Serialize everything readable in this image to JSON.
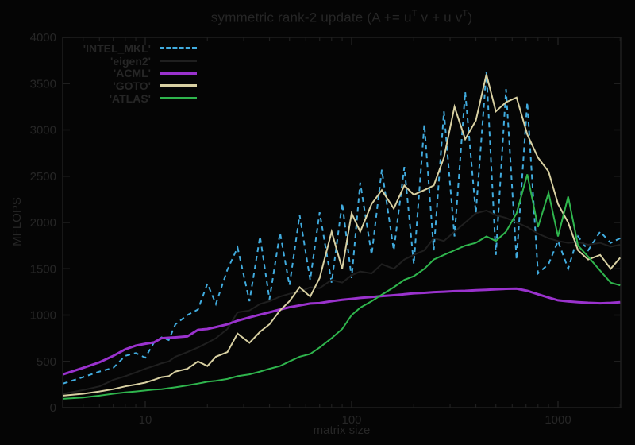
{
  "title": {
    "segments": [
      {
        "text": "symmetric rank-2 update (A += u",
        "sup": false
      },
      {
        "text": "T",
        "sup": true
      },
      {
        "text": " v + u v",
        "sup": false
      },
      {
        "text": "T",
        "sup": true
      },
      {
        "text": ")",
        "sup": false
      }
    ],
    "plain": "symmetric rank-2 update (A += uT v + u vT)"
  },
  "axes": {
    "x": {
      "label": "matrix size",
      "scale": "log",
      "min": 4,
      "max": 2000,
      "major_ticks": [
        10,
        100,
        1000
      ],
      "major_tick_labels": [
        "10",
        "100",
        "1000"
      ],
      "minor_ticks": [
        5,
        6,
        7,
        8,
        9,
        20,
        30,
        40,
        50,
        60,
        70,
        80,
        90,
        200,
        300,
        400,
        500,
        600,
        700,
        800,
        900,
        2000
      ]
    },
    "y": {
      "label": "MFLOPS",
      "min": 0,
      "max": 4000,
      "tick_values": [
        0,
        500,
        1000,
        1500,
        2000,
        2500,
        3000,
        3500,
        4000
      ],
      "tick_labels": [
        "0",
        "500",
        "1000",
        "1500",
        "2000",
        "2500",
        "3000",
        "3500",
        "4000"
      ]
    }
  },
  "legend": {
    "items": [
      {
        "label": "'INTEL_MKL'",
        "series": "INTEL_MKL"
      },
      {
        "label": "'eigen2'",
        "series": "eigen2"
      },
      {
        "label": "'ACML'",
        "series": "ACML"
      },
      {
        "label": "'GOTO'",
        "series": "GOTO"
      },
      {
        "label": "'ATLAS'",
        "series": "ATLAS"
      }
    ]
  },
  "colors": {
    "background": "#050505",
    "text": "#262626",
    "frame": "#1f1f1f",
    "intel_mkl": "#41acdf",
    "eigen2": "#1f1f1f",
    "acml": "#9a32cd",
    "goto": "#d8d0a2",
    "atlas": "#2fb54d"
  },
  "chart_data": {
    "type": "line",
    "title": "symmetric rank-2 update (A += uT v + u vT)",
    "xlabel": "matrix size",
    "ylabel": "MFLOPS",
    "x_scale": "log",
    "xlim": [
      4,
      2000
    ],
    "ylim": [
      0,
      4000
    ],
    "grid": false,
    "legend_position": "top-left",
    "sizes": [
      4,
      5,
      6,
      7,
      8,
      9,
      10,
      11,
      12,
      13,
      14,
      16,
      18,
      20,
      22,
      25,
      28,
      32,
      36,
      40,
      45,
      50,
      56,
      63,
      70,
      80,
      90,
      100,
      110,
      125,
      140,
      160,
      180,
      200,
      225,
      250,
      280,
      315,
      355,
      400,
      450,
      500,
      560,
      630,
      710,
      800,
      900,
      1000,
      1120,
      1250,
      1400,
      1600,
      1800,
      2000
    ],
    "series": [
      {
        "name": "INTEL_MKL",
        "style": "dashed",
        "color": "#41acdf",
        "values": [
          260,
          330,
          390,
          430,
          560,
          590,
          540,
          700,
          760,
          730,
          900,
          1000,
          1060,
          1340,
          1120,
          1490,
          1730,
          1150,
          1850,
          1170,
          1890,
          1320,
          2080,
          1380,
          2110,
          1350,
          2210,
          1400,
          2430,
          1650,
          2570,
          1700,
          2600,
          1550,
          3060,
          1700,
          3200,
          1850,
          3410,
          2100,
          3630,
          1650,
          3440,
          1600,
          3300,
          1450,
          1550,
          1800,
          1500,
          1850,
          1700,
          1900,
          1780,
          1830
        ]
      },
      {
        "name": "eigen2",
        "style": "solid",
        "color": "#1f1f1f",
        "values": [
          150,
          190,
          230,
          300,
          340,
          380,
          420,
          450,
          480,
          500,
          550,
          600,
          650,
          700,
          750,
          850,
          1030,
          1050,
          1120,
          1150,
          1200,
          1230,
          1250,
          1300,
          1290,
          1380,
          1350,
          1430,
          1470,
          1450,
          1550,
          1500,
          1600,
          1650,
          1700,
          1830,
          1800,
          1900,
          2000,
          2100,
          2130,
          2080,
          2050,
          2000,
          1950,
          1880,
          1830,
          1800,
          1780,
          1790,
          1760,
          1780,
          1740,
          1760
        ]
      },
      {
        "name": "ACML",
        "style": "solid",
        "color": "#9a32cd",
        "values": [
          360,
          430,
          490,
          560,
          630,
          670,
          690,
          705,
          750,
          755,
          760,
          770,
          840,
          850,
          870,
          900,
          940,
          975,
          1005,
          1030,
          1060,
          1085,
          1105,
          1125,
          1130,
          1150,
          1165,
          1175,
          1185,
          1195,
          1205,
          1215,
          1225,
          1235,
          1240,
          1248,
          1252,
          1258,
          1262,
          1268,
          1272,
          1278,
          1283,
          1285,
          1262,
          1225,
          1190,
          1160,
          1148,
          1140,
          1133,
          1128,
          1132,
          1140
        ]
      },
      {
        "name": "GOTO",
        "style": "solid",
        "color": "#d8d0a2",
        "values": [
          130,
          150,
          175,
          200,
          230,
          250,
          270,
          300,
          330,
          340,
          390,
          420,
          500,
          450,
          550,
          600,
          800,
          700,
          820,
          900,
          1050,
          1150,
          1300,
          1200,
          1400,
          1900,
          1500,
          2100,
          1900,
          2200,
          2350,
          2150,
          2400,
          2300,
          2350,
          2400,
          2700,
          3250,
          2900,
          3100,
          3600,
          3200,
          3300,
          3350,
          2950,
          2700,
          2550,
          2200,
          2000,
          1700,
          1600,
          1650,
          1500,
          1620
        ]
      },
      {
        "name": "ATLAS",
        "style": "solid",
        "color": "#2fb54d",
        "values": [
          95,
          110,
          130,
          150,
          165,
          175,
          185,
          195,
          200,
          210,
          220,
          240,
          260,
          280,
          290,
          310,
          340,
          360,
          390,
          420,
          450,
          500,
          550,
          580,
          650,
          750,
          850,
          1000,
          1080,
          1150,
          1220,
          1300,
          1380,
          1420,
          1500,
          1600,
          1650,
          1700,
          1750,
          1780,
          1850,
          1800,
          1900,
          2100,
          2520,
          1950,
          2320,
          1850,
          2280,
          1750,
          1630,
          1480,
          1350,
          1320
        ]
      }
    ]
  }
}
